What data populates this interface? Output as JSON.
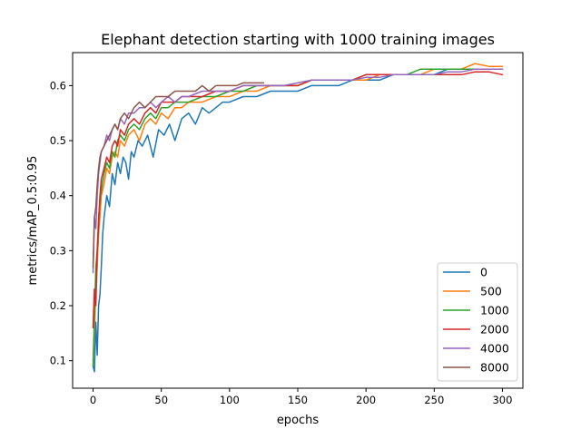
{
  "chart_data": {
    "type": "line",
    "title": "Elephant detection starting with 1000 training images",
    "xlabel": "epochs",
    "ylabel": "metrics/mAP_0.5:0.95",
    "xlim": [
      -15,
      315
    ],
    "ylim": [
      0.05,
      0.66
    ],
    "x_ticks": [
      0,
      50,
      100,
      150,
      200,
      250,
      300
    ],
    "y_ticks": [
      0.1,
      0.2,
      0.3,
      0.4,
      0.5,
      0.6
    ],
    "grid": false,
    "legend_position": "lower-right",
    "series": [
      {
        "name": "0",
        "color": "#1f77b4",
        "x": [
          0,
          1,
          2,
          3,
          4,
          5,
          6,
          7,
          8,
          10,
          12,
          14,
          16,
          18,
          20,
          22,
          24,
          26,
          28,
          30,
          33,
          36,
          40,
          44,
          48,
          52,
          56,
          60,
          65,
          70,
          75,
          80,
          85,
          90,
          95,
          100,
          110,
          120,
          130,
          140,
          150,
          160,
          170,
          180,
          190,
          200,
          210,
          220,
          230,
          240,
          250,
          260,
          270,
          280,
          290,
          300
        ],
        "y": [
          0.09,
          0.08,
          0.17,
          0.11,
          0.2,
          0.22,
          0.27,
          0.33,
          0.36,
          0.4,
          0.38,
          0.44,
          0.42,
          0.46,
          0.44,
          0.47,
          0.46,
          0.43,
          0.48,
          0.47,
          0.5,
          0.49,
          0.51,
          0.47,
          0.52,
          0.51,
          0.53,
          0.5,
          0.54,
          0.55,
          0.53,
          0.56,
          0.55,
          0.56,
          0.57,
          0.57,
          0.58,
          0.58,
          0.59,
          0.59,
          0.59,
          0.6,
          0.6,
          0.6,
          0.61,
          0.61,
          0.61,
          0.62,
          0.62,
          0.62,
          0.62,
          0.63,
          0.63,
          0.63,
          0.63,
          0.63
        ]
      },
      {
        "name": "500",
        "color": "#ff7f0e",
        "x": [
          0,
          1,
          2,
          3,
          4,
          5,
          6,
          8,
          10,
          12,
          14,
          16,
          18,
          20,
          23,
          26,
          30,
          34,
          38,
          42,
          46,
          50,
          55,
          60,
          65,
          70,
          80,
          90,
          100,
          110,
          120,
          130,
          140,
          150,
          160,
          170,
          180,
          190,
          200,
          210,
          220,
          230,
          240,
          250,
          260,
          270,
          280,
          290,
          300
        ],
        "y": [
          0.1,
          0.15,
          0.23,
          0.27,
          0.33,
          0.36,
          0.4,
          0.42,
          0.45,
          0.44,
          0.47,
          0.48,
          0.47,
          0.5,
          0.49,
          0.51,
          0.52,
          0.5,
          0.53,
          0.54,
          0.53,
          0.55,
          0.54,
          0.56,
          0.56,
          0.57,
          0.57,
          0.58,
          0.58,
          0.59,
          0.59,
          0.6,
          0.6,
          0.6,
          0.61,
          0.61,
          0.61,
          0.61,
          0.61,
          0.62,
          0.62,
          0.62,
          0.62,
          0.63,
          0.63,
          0.63,
          0.64,
          0.635,
          0.635
        ]
      },
      {
        "name": "1000",
        "color": "#2ca02c",
        "x": [
          0,
          1,
          2,
          3,
          4,
          5,
          6,
          8,
          10,
          12,
          14,
          16,
          18,
          20,
          23,
          26,
          30,
          34,
          38,
          42,
          46,
          50,
          55,
          60,
          65,
          70,
          80,
          90,
          100,
          110,
          120,
          130,
          140,
          150,
          160,
          170,
          180,
          190,
          200,
          210,
          220,
          230,
          240,
          250,
          260,
          270,
          280,
          290,
          300
        ],
        "y": [
          0.09,
          0.18,
          0.27,
          0.3,
          0.36,
          0.39,
          0.41,
          0.44,
          0.46,
          0.45,
          0.48,
          0.47,
          0.5,
          0.51,
          0.5,
          0.52,
          0.53,
          0.52,
          0.54,
          0.55,
          0.54,
          0.56,
          0.56,
          0.57,
          0.57,
          0.57,
          0.58,
          0.58,
          0.59,
          0.59,
          0.6,
          0.6,
          0.6,
          0.6,
          0.61,
          0.61,
          0.61,
          0.61,
          0.62,
          0.62,
          0.62,
          0.62,
          0.63,
          0.63,
          0.63,
          0.63,
          0.63,
          0.63,
          0.63
        ]
      },
      {
        "name": "2000",
        "color": "#d62728",
        "x": [
          0,
          1,
          2,
          3,
          4,
          5,
          6,
          8,
          10,
          12,
          14,
          16,
          18,
          20,
          23,
          26,
          30,
          34,
          38,
          42,
          46,
          50,
          55,
          60,
          65,
          70,
          80,
          90,
          100,
          110,
          120,
          130,
          140,
          150,
          160,
          170,
          180,
          190,
          200,
          210,
          220,
          230,
          240,
          250,
          260,
          270,
          280,
          290,
          300
        ],
        "y": [
          0.16,
          0.23,
          0.2,
          0.3,
          0.35,
          0.4,
          0.43,
          0.45,
          0.47,
          0.46,
          0.49,
          0.5,
          0.49,
          0.52,
          0.51,
          0.53,
          0.54,
          0.53,
          0.55,
          0.56,
          0.55,
          0.57,
          0.57,
          0.57,
          0.58,
          0.58,
          0.58,
          0.59,
          0.59,
          0.6,
          0.6,
          0.6,
          0.6,
          0.6,
          0.61,
          0.61,
          0.61,
          0.61,
          0.62,
          0.62,
          0.62,
          0.62,
          0.62,
          0.62,
          0.62,
          0.62,
          0.625,
          0.625,
          0.62
        ]
      },
      {
        "name": "4000",
        "color": "#9467bd",
        "x": [
          0,
          1,
          2,
          3,
          4,
          5,
          6,
          8,
          10,
          12,
          14,
          16,
          18,
          20,
          23,
          26,
          30,
          34,
          38,
          42,
          46,
          50,
          55,
          60,
          65,
          70,
          80,
          90,
          100,
          110,
          120,
          130,
          140,
          150,
          160,
          170,
          180,
          190,
          200,
          210,
          220,
          230,
          240,
          250,
          260,
          270,
          280,
          290,
          300
        ],
        "y": [
          0.26,
          0.36,
          0.34,
          0.4,
          0.44,
          0.46,
          0.48,
          0.49,
          0.51,
          0.5,
          0.52,
          0.53,
          0.52,
          0.54,
          0.53,
          0.55,
          0.55,
          0.56,
          0.56,
          0.57,
          0.56,
          0.57,
          0.58,
          0.57,
          0.58,
          0.58,
          0.59,
          0.59,
          0.59,
          0.6,
          0.6,
          0.6,
          0.6,
          0.605,
          0.61,
          0.61,
          0.61,
          0.61,
          0.615,
          0.615,
          0.62,
          0.62,
          0.62,
          0.62,
          0.625,
          0.625,
          0.63,
          0.63,
          0.63
        ]
      },
      {
        "name": "8000",
        "color": "#8c564b",
        "x": [
          0,
          1,
          2,
          3,
          4,
          5,
          6,
          8,
          10,
          12,
          14,
          16,
          18,
          20,
          23,
          26,
          30,
          34,
          38,
          42,
          46,
          50,
          55,
          60,
          65,
          70,
          75,
          80,
          85,
          90,
          95,
          100,
          105,
          110,
          115,
          120,
          125
        ],
        "y": [
          0.27,
          0.36,
          0.38,
          0.42,
          0.45,
          0.47,
          0.48,
          0.49,
          0.5,
          0.51,
          0.52,
          0.53,
          0.52,
          0.54,
          0.55,
          0.54,
          0.56,
          0.57,
          0.56,
          0.57,
          0.58,
          0.58,
          0.58,
          0.59,
          0.59,
          0.59,
          0.59,
          0.6,
          0.59,
          0.6,
          0.6,
          0.6,
          0.6,
          0.605,
          0.605,
          0.605,
          0.605
        ]
      }
    ]
  }
}
